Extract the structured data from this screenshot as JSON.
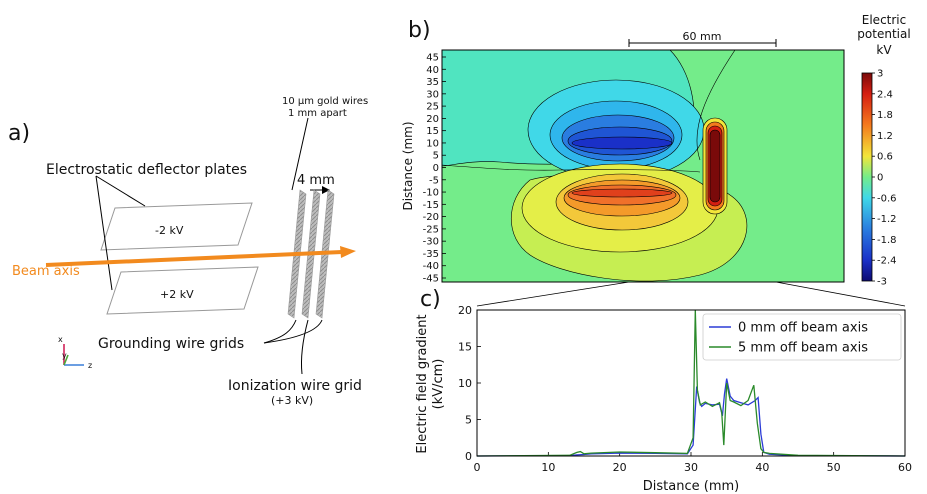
{
  "panel_a": {
    "label": "a)",
    "wire_note_1": "10 µm gold wires",
    "wire_note_2": "1 mm apart",
    "plates_label": "Electrostatic deflector plates",
    "gap_label": "4 mm",
    "top_plate": "-2 kV",
    "bottom_plate": "+2 kV",
    "beam_label": "Beam axis",
    "grounding_label": "Grounding wire grids",
    "ionization_label": "Ionization wire grid",
    "ionization_sub": "(+3 kV)",
    "axis_x": "x",
    "axis_y": "y",
    "axis_z": "z",
    "beam_color": "#f28a1e"
  },
  "panel_b": {
    "label": "b)",
    "scale_label": "60 mm",
    "ylabel": "Distance (mm)",
    "yticks": [
      "45",
      "40",
      "35",
      "30",
      "25",
      "20",
      "15",
      "10",
      "5",
      "0",
      "-5",
      "-10",
      "-15",
      "-20",
      "-25",
      "-30",
      "-35",
      "-40",
      "-45"
    ],
    "colorbar_title_1": "Electric",
    "colorbar_title_2": "potential",
    "colorbar_unit": "kV",
    "colorbar_ticks": [
      "3",
      "2.4",
      "1.8",
      "1.2",
      "0.6",
      "0",
      "-0.6",
      "-1.2",
      "-1.8",
      "-2.4",
      "-3"
    ]
  },
  "panel_c": {
    "label": "c)",
    "chart_data": {
      "type": "line",
      "xlabel": "Distance (mm)",
      "ylabel_1": "Electric field gradient",
      "ylabel_2": "(kV/cm)",
      "xlim": [
        0,
        60
      ],
      "ylim": [
        0,
        20
      ],
      "xticks": [
        "0",
        "10",
        "20",
        "30",
        "40",
        "50",
        "60"
      ],
      "yticks": [
        "0",
        "5",
        "10",
        "15",
        "20"
      ],
      "legend_position": "top-right",
      "series": [
        {
          "name": "0 mm off beam axis",
          "color": "#2b3bd6",
          "x": [
            0,
            13,
            14,
            15,
            16,
            20,
            25,
            29.5,
            30.3,
            30.8,
            31.2,
            31.5,
            32,
            33,
            34,
            34.4,
            34.7,
            35,
            35.5,
            36,
            37,
            38,
            39,
            39.4,
            39.8,
            40.2,
            41,
            45,
            60
          ],
          "y": [
            0,
            0.05,
            0.15,
            0.2,
            0.3,
            0.4,
            0.35,
            0.3,
            1.5,
            9.5,
            7.3,
            6.8,
            7.2,
            7.0,
            7.1,
            5.5,
            8.5,
            10.6,
            8.2,
            7.6,
            7.3,
            7.0,
            7.6,
            8.0,
            3.0,
            0.5,
            0.25,
            0.05,
            0
          ]
        },
        {
          "name": "5 mm off beam axis",
          "color": "#2a8a2a",
          "x": [
            0,
            13,
            14,
            14.5,
            15,
            16,
            20,
            25,
            29.5,
            30.3,
            30.6,
            30.9,
            31.3,
            32,
            33,
            34,
            34.3,
            34.6,
            35,
            35.5,
            36,
            37,
            38,
            38.8,
            39.3,
            39.8,
            40.2,
            41,
            45,
            60
          ],
          "y": [
            0,
            0.1,
            0.5,
            0.6,
            0.3,
            0.4,
            0.55,
            0.45,
            0.35,
            2.5,
            20,
            9.0,
            7.0,
            7.4,
            6.8,
            7.3,
            6.0,
            1.5,
            10.0,
            7.6,
            7.4,
            6.9,
            7.6,
            9.7,
            4.5,
            1.0,
            0.5,
            0.35,
            0.1,
            0
          ]
        }
      ]
    }
  }
}
